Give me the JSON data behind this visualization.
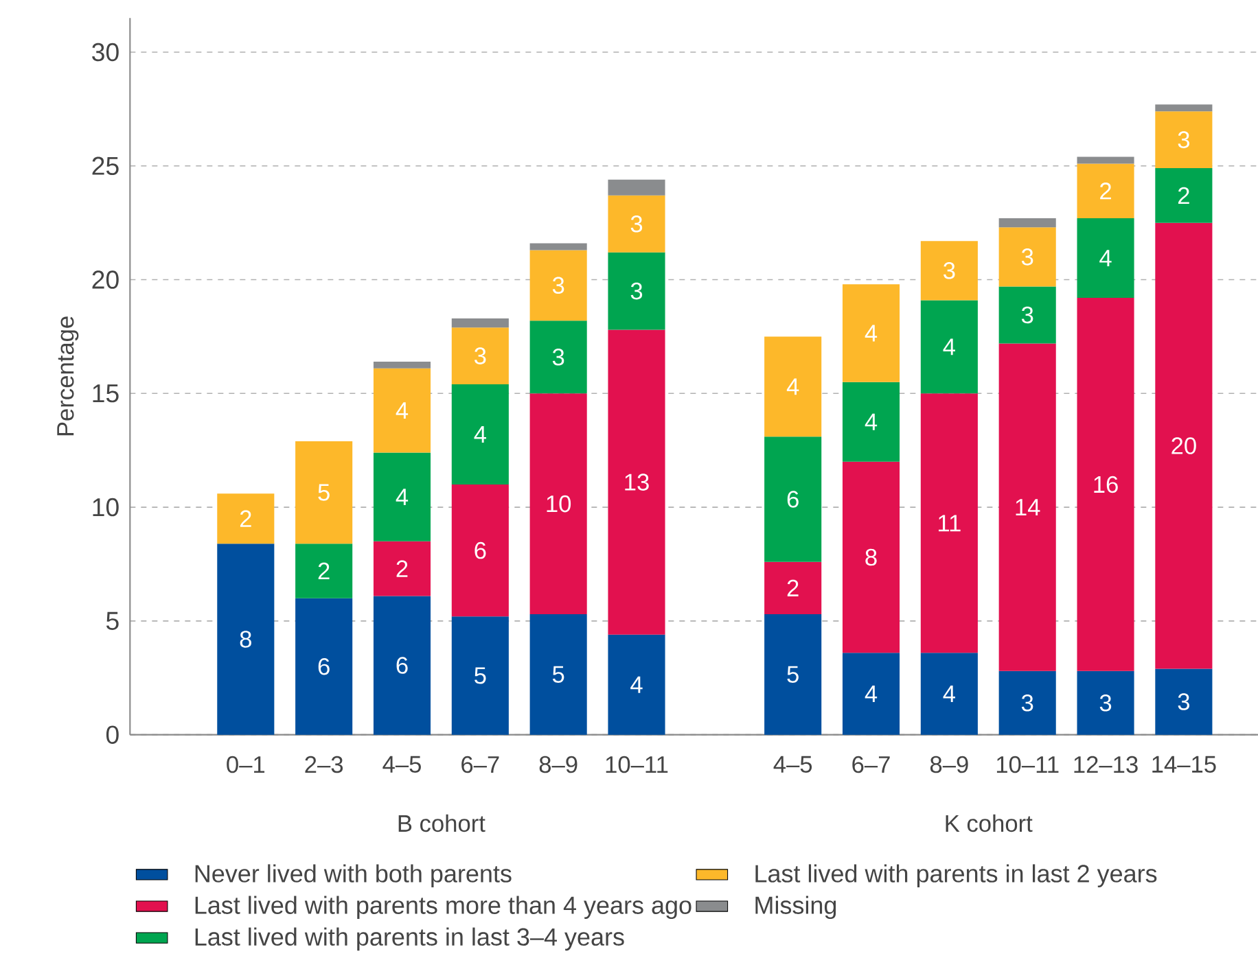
{
  "chart_data": {
    "type": "bar",
    "stacked": true,
    "ylabel": "Percentage",
    "categories": [
      "0–1",
      "2–3",
      "4–5",
      "6–7",
      "8–9",
      "10–11",
      null,
      "4–5",
      "6–7",
      "8–9",
      "10–11",
      "12–13",
      "14–15"
    ],
    "series": [
      {
        "name": "Never lived with both parents",
        "color": "#004f9e",
        "values": [
          8.4,
          6.0,
          6.1,
          5.2,
          5.3,
          4.4,
          null,
          5.3,
          3.6,
          3.6,
          2.8,
          2.8,
          2.9
        ],
        "value_labels": [
          "8",
          "6",
          "6",
          "5",
          "5",
          "4",
          null,
          "5",
          "4",
          "4",
          "3",
          "3",
          "3"
        ]
      },
      {
        "name": "Last lived with parents more than 4 years ago",
        "color": "#e2114f",
        "values": [
          null,
          null,
          2.4,
          5.8,
          9.7,
          13.4,
          null,
          2.3,
          8.4,
          11.4,
          14.4,
          16.4,
          19.6
        ],
        "value_labels": [
          null,
          null,
          "2",
          "6",
          "10",
          "13",
          null,
          "2",
          "8",
          "11",
          "14",
          "16",
          "20"
        ]
      },
      {
        "name": "Last lived with parents in last 3–4 years",
        "color": "#00a550",
        "values": [
          null,
          2.4,
          3.9,
          4.4,
          3.2,
          3.4,
          null,
          5.5,
          3.5,
          4.1,
          2.5,
          3.5,
          2.4
        ],
        "value_labels": [
          null,
          "2",
          "4",
          "4",
          "3",
          "3",
          null,
          "6",
          "4",
          "4",
          "3",
          "4",
          "2"
        ]
      },
      {
        "name": "Last lived with parents in last 2 years",
        "color": "#fdb82a",
        "values": [
          2.2,
          4.5,
          3.7,
          2.5,
          3.1,
          2.5,
          null,
          4.4,
          4.3,
          2.6,
          2.6,
          2.4,
          2.5
        ],
        "value_labels": [
          "2",
          "5",
          "4",
          "3",
          "3",
          "3",
          null,
          "4",
          "4",
          "3",
          "3",
          "2",
          "3"
        ]
      },
      {
        "name": "Missing",
        "color": "#8a8c8e",
        "values": [
          null,
          null,
          0.3,
          0.4,
          0.3,
          0.7,
          null,
          null,
          null,
          null,
          0.4,
          0.3,
          0.3
        ]
      }
    ],
    "annotations": [
      "B cohort",
      "K cohort"
    ],
    "ylim": [
      0,
      31.5
    ],
    "yticks": [
      0,
      5,
      10,
      15,
      20,
      25,
      30
    ],
    "grid": "y",
    "legend": "bottom"
  }
}
